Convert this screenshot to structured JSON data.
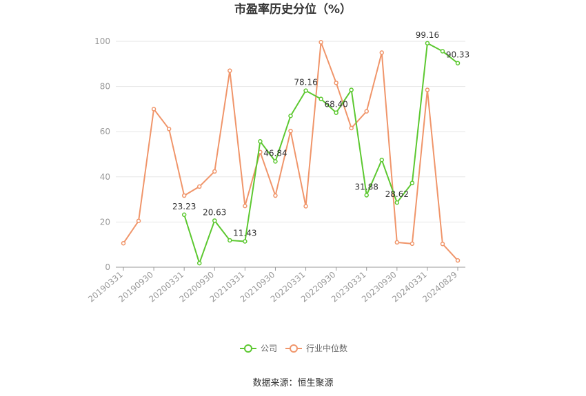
{
  "chart_data": {
    "type": "line",
    "title": "市盈率历史分位（%）",
    "source": "数据来源：恒生聚源",
    "ylim": [
      0,
      100
    ],
    "yticks": [
      0,
      20,
      40,
      60,
      80,
      100
    ],
    "grid": true,
    "legend_position": "bottom",
    "x": [
      "20190331",
      "20190630",
      "20190930",
      "20191231",
      "20200331",
      "20200630",
      "20200930",
      "20201231",
      "20210331",
      "20210630",
      "20210930",
      "20211231",
      "20220331",
      "20220630",
      "20220930",
      "20221231",
      "20230331",
      "20230630",
      "20230930",
      "20231231",
      "20240331",
      "20240630",
      "20240829"
    ],
    "x_tick_labels": [
      "20190331",
      "20190930",
      "20200331",
      "20200930",
      "20210331",
      "20210930",
      "20220331",
      "20220930",
      "20230331",
      "20230930",
      "20240331",
      "20240829"
    ],
    "series": [
      {
        "name": "公司",
        "color": "#5cc830",
        "values": [
          null,
          null,
          null,
          null,
          23.23,
          1.8,
          20.63,
          11.9,
          11.43,
          55.7,
          46.84,
          67.0,
          78.16,
          74.5,
          68.4,
          78.5,
          31.88,
          47.5,
          28.62,
          37.3,
          99.16,
          95.6,
          90.33
        ]
      },
      {
        "name": "行业中位数",
        "color": "#f0956a",
        "values": [
          10.6,
          20.5,
          70.0,
          61.2,
          31.7,
          35.7,
          42.4,
          87.0,
          27.1,
          51.0,
          31.7,
          60.3,
          27.0,
          99.6,
          81.6,
          61.6,
          69.0,
          95.0,
          11.0,
          10.4,
          78.5,
          10.3,
          3.0
        ]
      }
    ],
    "data_labels": [
      {
        "series": 0,
        "index": 4,
        "text": "23.23"
      },
      {
        "series": 0,
        "index": 6,
        "text": "20.63"
      },
      {
        "series": 0,
        "index": 8,
        "text": "11.43"
      },
      {
        "series": 0,
        "index": 10,
        "text": "46.84"
      },
      {
        "series": 0,
        "index": 12,
        "text": "78.16"
      },
      {
        "series": 0,
        "index": 14,
        "text": "68.40"
      },
      {
        "series": 0,
        "index": 16,
        "text": "31.88"
      },
      {
        "series": 0,
        "index": 18,
        "text": "28.62"
      },
      {
        "series": 0,
        "index": 20,
        "text": "99.16"
      },
      {
        "series": 0,
        "index": 22,
        "text": "90.33"
      }
    ]
  }
}
